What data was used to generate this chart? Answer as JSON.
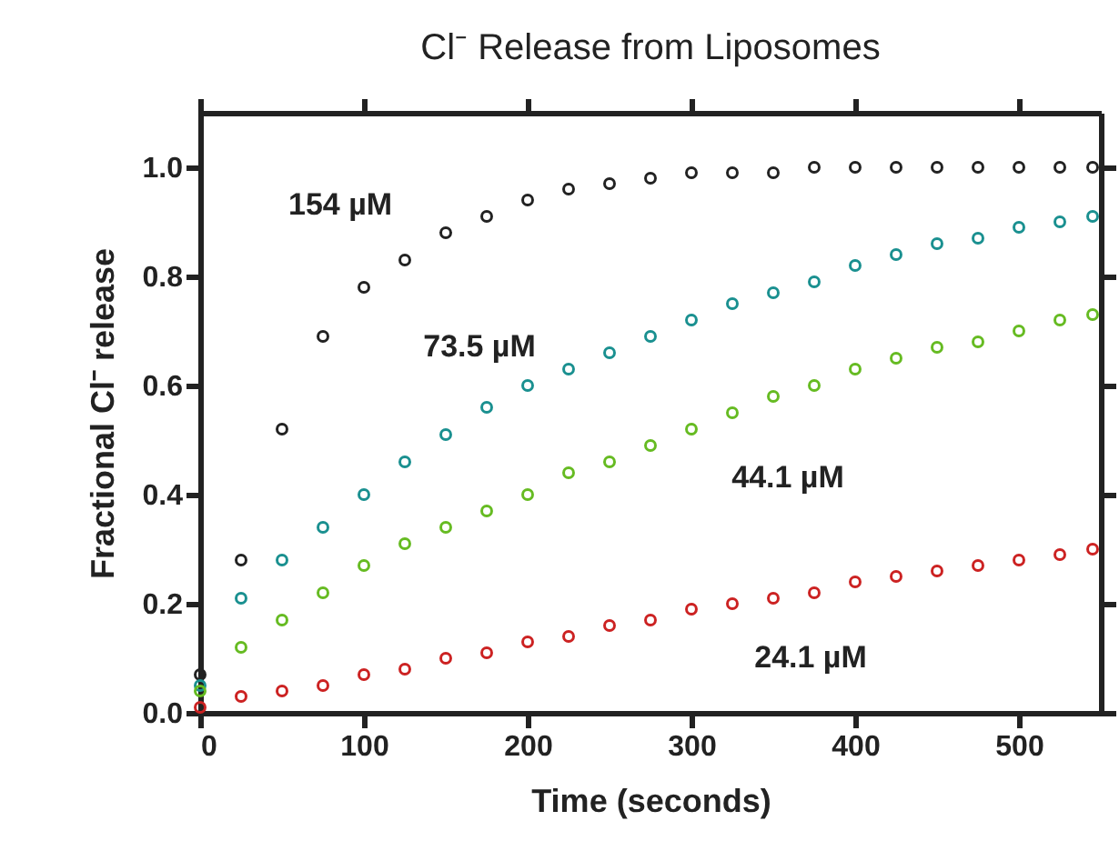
{
  "chart_data": {
    "type": "scatter",
    "title": "Cl⁻ Release from Liposomes",
    "xlabel": "Time (seconds)",
    "ylabel": "Fractional Cl⁻ release",
    "x": [
      0,
      25,
      50,
      75,
      100,
      125,
      150,
      175,
      200,
      225,
      250,
      275,
      300,
      325,
      350,
      375,
      400,
      425,
      450,
      475,
      500,
      525,
      545
    ],
    "series": [
      {
        "name": "154 µM",
        "color": "#222222",
        "values": [
          0.07,
          0.28,
          0.52,
          0.69,
          0.78,
          0.83,
          0.88,
          0.91,
          0.94,
          0.96,
          0.97,
          0.98,
          0.99,
          0.99,
          0.99,
          1.0,
          1.0,
          1.0,
          1.0,
          1.0,
          1.0,
          1.0,
          1.0
        ]
      },
      {
        "name": "73.5 µM",
        "color": "#1a9090",
        "values": [
          0.05,
          0.21,
          0.28,
          0.34,
          0.4,
          0.46,
          0.51,
          0.56,
          0.6,
          0.63,
          0.66,
          0.69,
          0.72,
          0.75,
          0.77,
          0.79,
          0.82,
          0.84,
          0.86,
          0.87,
          0.89,
          0.9,
          0.91
        ]
      },
      {
        "name": "44.1 µM",
        "color": "#66bb22",
        "values": [
          0.04,
          0.12,
          0.17,
          0.22,
          0.27,
          0.31,
          0.34,
          0.37,
          0.4,
          0.44,
          0.46,
          0.49,
          0.52,
          0.55,
          0.58,
          0.6,
          0.63,
          0.65,
          0.67,
          0.68,
          0.7,
          0.72,
          0.73
        ]
      },
      {
        "name": "24.1 µM",
        "color": "#cc2222",
        "values": [
          0.01,
          0.03,
          0.04,
          0.05,
          0.07,
          0.08,
          0.1,
          0.11,
          0.13,
          0.14,
          0.16,
          0.17,
          0.19,
          0.2,
          0.21,
          0.22,
          0.24,
          0.25,
          0.26,
          0.27,
          0.28,
          0.29,
          0.3
        ]
      }
    ],
    "xlim": [
      0,
      550
    ],
    "xticks": [
      0,
      100,
      200,
      300,
      400,
      500
    ],
    "ylim": [
      0,
      1.1
    ],
    "yticks": [
      {
        "value": 0,
        "label": "0.0"
      },
      {
        "value": 0.2,
        "label": "0.2"
      },
      {
        "value": 0.4,
        "label": "0.4"
      },
      {
        "value": 0.6,
        "label": "0.6"
      },
      {
        "value": 0.8,
        "label": "0.8"
      },
      {
        "value": 1.0,
        "label": "1.0"
      }
    ],
    "marker": "circle",
    "grid": false,
    "legend": false
  }
}
